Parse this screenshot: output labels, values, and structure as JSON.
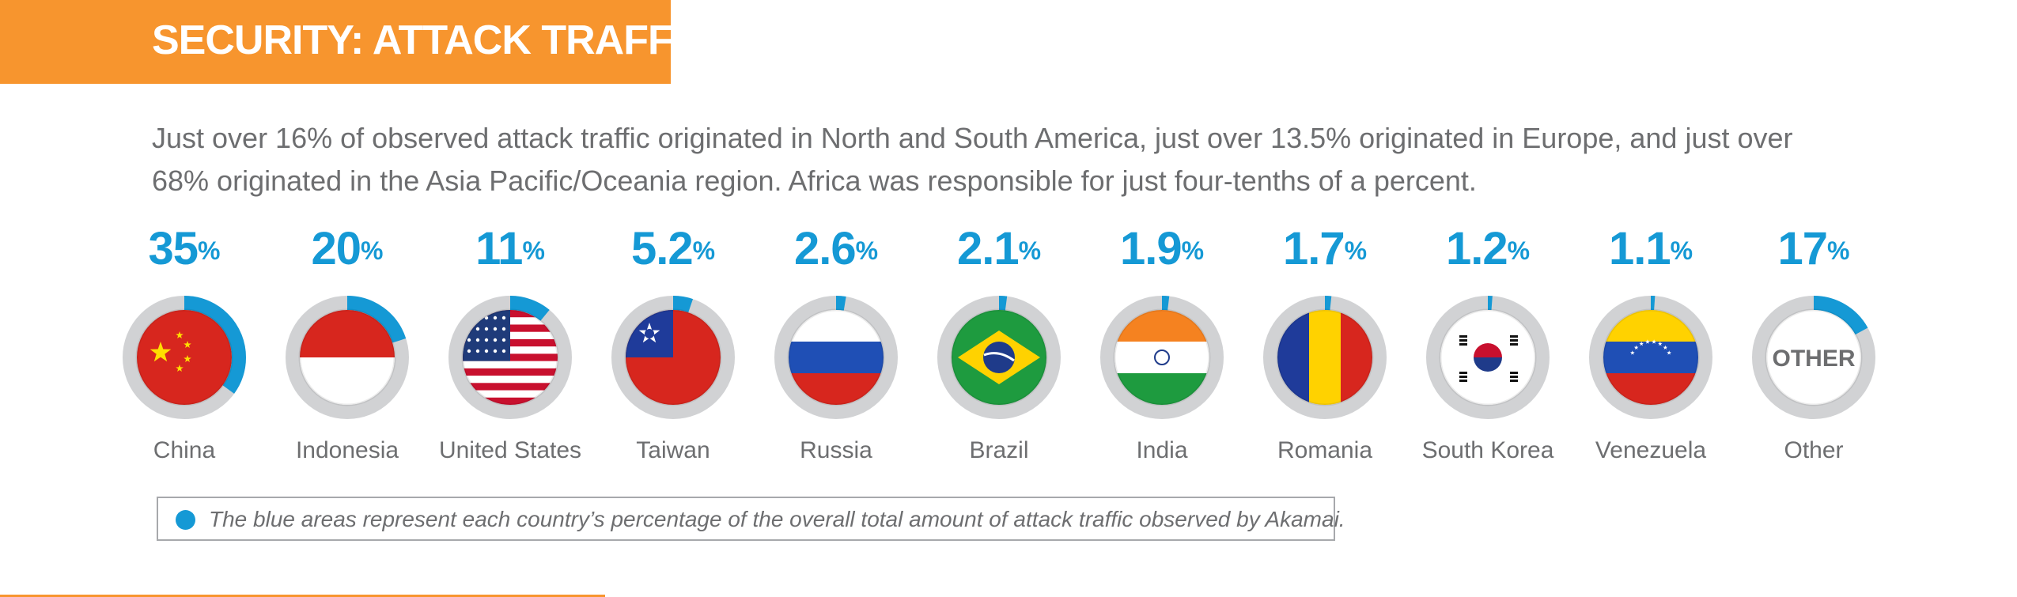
{
  "header": {
    "title": "SECURITY: ATTACK TRAFFIC"
  },
  "intro": "Just over 16% of observed attack traffic originated in North and South America, just over 13.5% originated in Europe, and just over 68% originated in the Asia Pacific/Oceania region. Africa was responsible for just four-tenths of a percent.",
  "legend": {
    "text": "The blue areas represent each country’s percentage of the overall total amount of attack traffic observed by Akamai."
  },
  "colors": {
    "accent_orange": "#f7952e",
    "accent_blue": "#1599d5",
    "ring_gray": "#d1d2d4",
    "text_gray": "#6d6e70"
  },
  "chart_data": {
    "type": "pie",
    "title": "",
    "items": [
      {
        "country": "China",
        "label": "35",
        "unit": "%",
        "value": 35,
        "flag": "china-flag-icon"
      },
      {
        "country": "Indonesia",
        "label": "20",
        "unit": "%",
        "value": 20,
        "flag": "indonesia-flag-icon"
      },
      {
        "country": "United States",
        "label": "11",
        "unit": "%",
        "value": 11,
        "flag": "us-flag-icon"
      },
      {
        "country": "Taiwan",
        "label": "5.2",
        "unit": "%",
        "value": 5.2,
        "flag": "taiwan-flag-icon"
      },
      {
        "country": "Russia",
        "label": "2.6",
        "unit": "%",
        "value": 2.6,
        "flag": "russia-flag-icon"
      },
      {
        "country": "Brazil",
        "label": "2.1",
        "unit": "%",
        "value": 2.1,
        "flag": "brazil-flag-icon"
      },
      {
        "country": "India",
        "label": "1.9",
        "unit": "%",
        "value": 1.9,
        "flag": "india-flag-icon"
      },
      {
        "country": "Romania",
        "label": "1.7",
        "unit": "%",
        "value": 1.7,
        "flag": "romania-flag-icon"
      },
      {
        "country": "South Korea",
        "label": "1.2",
        "unit": "%",
        "value": 1.2,
        "flag": "south-korea-flag-icon"
      },
      {
        "country": "Venezuela",
        "label": "1.1",
        "unit": "%",
        "value": 1.1,
        "flag": "venezuela-flag-icon"
      },
      {
        "country": "Other",
        "label": "17",
        "unit": "%",
        "value": 17,
        "flag": "other-badge-icon",
        "badge_text": "OTHER"
      }
    ]
  }
}
